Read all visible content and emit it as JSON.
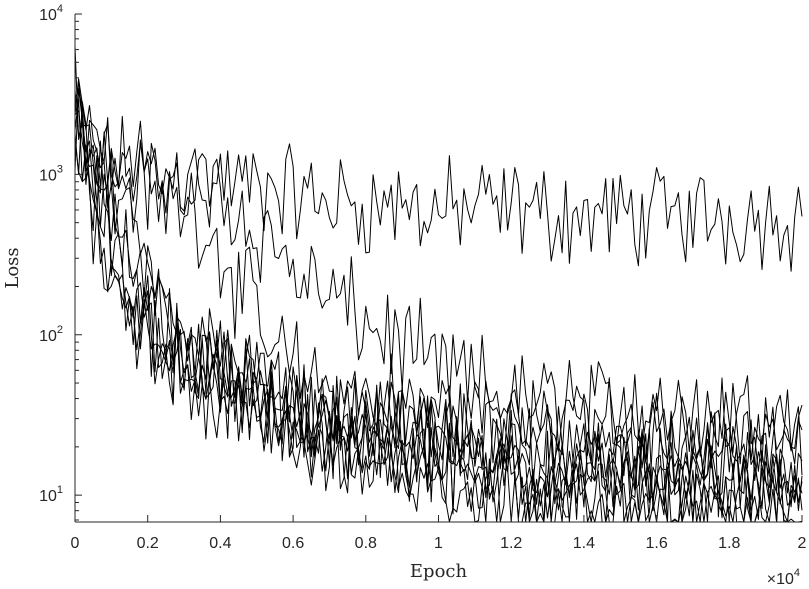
{
  "chart_data": {
    "type": "line",
    "xlabel": "Epoch",
    "ylabel": "Loss",
    "xlim": [
      0,
      20000
    ],
    "ylim": [
      6.8,
      10000
    ],
    "yscale": "log",
    "grid": false,
    "x_ticks": [
      0,
      2000,
      4000,
      6000,
      8000,
      10000,
      12000,
      14000,
      16000,
      18000,
      20000
    ],
    "x_tick_labels": [
      "0",
      "0.2",
      "0.4",
      "0.6",
      "0.8",
      "1",
      "1.2",
      "1.4",
      "1.6",
      "1.8",
      "2"
    ],
    "x_multiplier": {
      "base": "×10",
      "exponent": "4"
    },
    "y_ticks": [
      {
        "value": 10,
        "base": "10",
        "exponent": "1"
      },
      {
        "value": 100,
        "base": "10",
        "exponent": "2"
      },
      {
        "value": 1000,
        "base": "10",
        "exponent": "3"
      },
      {
        "value": 10000,
        "base": "10",
        "exponent": "4"
      }
    ],
    "series_count": 10,
    "series_trends": [
      {
        "x": [
          0,
          300,
          800,
          1500,
          2500,
          3500,
          4500,
          5500,
          6500,
          8000,
          10000,
          12000,
          14000,
          16000,
          18000,
          20000
        ],
        "y": [
          2500,
          1800,
          1200,
          1100,
          1000,
          950,
          850,
          800,
          700,
          650,
          600,
          600,
          550,
          550,
          550,
          550
        ]
      },
      {
        "x": [
          0,
          300,
          800,
          1500,
          2500,
          3500,
          4500,
          5500,
          6500,
          8000,
          10000,
          12000,
          14000,
          16000,
          18000,
          20000
        ],
        "y": [
          2000,
          1500,
          1200,
          1000,
          900,
          800,
          600,
          350,
          200,
          120,
          60,
          40,
          35,
          32,
          32,
          30
        ]
      },
      {
        "x": [
          0,
          300,
          800,
          1500,
          2500,
          3500,
          4500,
          5500,
          6500,
          8000,
          10000,
          12000,
          14000,
          16000,
          18000,
          20000
        ],
        "y": [
          2800,
          1600,
          1100,
          900,
          750,
          550,
          200,
          80,
          50,
          40,
          35,
          32,
          30,
          28,
          28,
          26
        ]
      },
      {
        "x": [
          0,
          300,
          800,
          1500,
          2500,
          3500,
          4500,
          5500,
          6500,
          8000,
          10000,
          12000,
          14000,
          16000,
          18000,
          20000
        ],
        "y": [
          3200,
          1300,
          700,
          200,
          80,
          55,
          45,
          38,
          32,
          28,
          24,
          22,
          21,
          20,
          20,
          19
        ]
      },
      {
        "x": [
          0,
          300,
          800,
          1500,
          2500,
          3500,
          4500,
          5500,
          6500,
          8000,
          10000,
          12000,
          14000,
          16000,
          18000,
          20000
        ],
        "y": [
          2200,
          1100,
          500,
          180,
          90,
          60,
          45,
          35,
          28,
          24,
          20,
          18,
          17,
          16,
          16,
          15
        ]
      },
      {
        "x": [
          0,
          300,
          800,
          1500,
          2500,
          3500,
          4500,
          5500,
          6500,
          8000,
          10000,
          12000,
          14000,
          16000,
          18000,
          20000
        ],
        "y": [
          2600,
          1500,
          900,
          300,
          110,
          70,
          50,
          40,
          32,
          26,
          20,
          17,
          15,
          14,
          13,
          13
        ]
      },
      {
        "x": [
          0,
          300,
          800,
          1500,
          2500,
          3500,
          4500,
          5500,
          6500,
          8000,
          10000,
          12000,
          14000,
          16000,
          18000,
          20000
        ],
        "y": [
          3000,
          1700,
          1000,
          400,
          140,
          80,
          55,
          40,
          30,
          22,
          17,
          14,
          12,
          11,
          11,
          10
        ]
      },
      {
        "x": [
          0,
          300,
          800,
          1500,
          2500,
          3500,
          4500,
          5500,
          6500,
          8000,
          10000,
          12000,
          14000,
          16000,
          18000,
          20000
        ],
        "y": [
          1800,
          900,
          350,
          150,
          90,
          60,
          42,
          30,
          24,
          19,
          15,
          12,
          11,
          10,
          10,
          9
        ]
      },
      {
        "x": [
          0,
          300,
          800,
          1500,
          2500,
          3500,
          4500,
          5500,
          6500,
          8000,
          10000,
          12000,
          14000,
          16000,
          18000,
          20000
        ],
        "y": [
          2400,
          1200,
          600,
          250,
          120,
          75,
          48,
          33,
          25,
          18,
          14,
          11,
          10,
          9,
          9,
          8.5
        ]
      },
      {
        "x": [
          0,
          300,
          800,
          1500,
          2500,
          3500,
          4500,
          5500,
          6500,
          8000,
          10000,
          12000,
          14000,
          16000,
          18000,
          20000
        ],
        "y": [
          2100,
          1000,
          400,
          120,
          70,
          50,
          38,
          28,
          22,
          16,
          13,
          11,
          10,
          9,
          8.5,
          8
        ]
      }
    ],
    "noise_log10_amplitude": 0.28,
    "sample_step": 100
  }
}
